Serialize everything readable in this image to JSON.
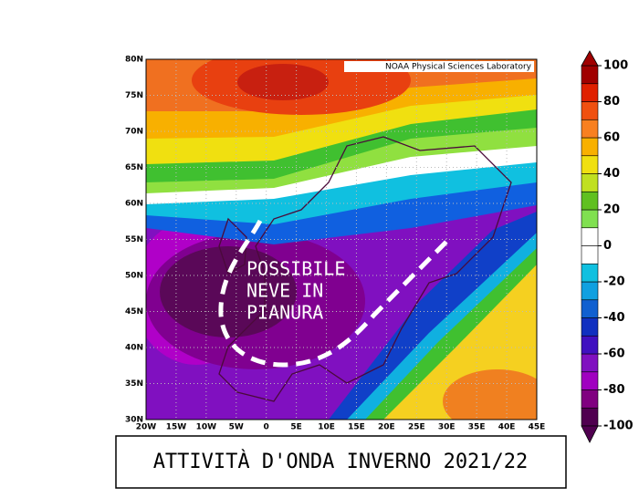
{
  "map": {
    "credit": "NOAA Physical Sciences Laboratory",
    "lon_lim": [
      -20,
      45
    ],
    "lat_lim": [
      30,
      80
    ],
    "lon_ticks": [
      {
        "value": -20,
        "label": "20W"
      },
      {
        "value": -15,
        "label": "15W"
      },
      {
        "value": -10,
        "label": "10W"
      },
      {
        "value": -5,
        "label": "5W"
      },
      0,
      {
        "value": 5,
        "label": "5E"
      },
      {
        "value": 10,
        "label": "10E"
      },
      {
        "value": 15,
        "label": "15E"
      },
      {
        "value": 20,
        "label": "20E"
      },
      {
        "value": 25,
        "label": "25E"
      },
      {
        "value": 30,
        "label": "30E"
      },
      {
        "value": 35,
        "label": "35E"
      },
      {
        "value": 40,
        "label": "40E"
      },
      {
        "value": 45,
        "label": "45E"
      }
    ],
    "lat_ticks": [
      {
        "value": 30,
        "label": "30N"
      },
      {
        "value": 35,
        "label": "35N"
      },
      {
        "value": 40,
        "label": "40N"
      },
      {
        "value": 45,
        "label": "45N"
      },
      {
        "value": 50,
        "label": "50N"
      },
      {
        "value": 55,
        "label": "55N"
      },
      {
        "value": 60,
        "label": "60N"
      },
      {
        "value": 65,
        "label": "65N"
      },
      {
        "value": 70,
        "label": "70N"
      },
      {
        "value": 75,
        "label": "75N"
      },
      {
        "value": 80,
        "label": "80N"
      }
    ]
  },
  "colorbar": {
    "lim": [
      -100,
      100
    ],
    "ticks": [
      -100,
      -80,
      -60,
      -40,
      -20,
      0,
      20,
      40,
      60,
      80,
      100
    ],
    "colors": [
      "#500050",
      "#800080",
      "#a000c0",
      "#8010c0",
      "#4010c0",
      "#1030c0",
      "#1060d0",
      "#10a0e0",
      "#10c0e0",
      "#ffffff",
      "#ffffff",
      "#80e050",
      "#60c020",
      "#c0e020",
      "#f0e010",
      "#f8b000",
      "#f88020",
      "#f05010",
      "#e02000",
      "#a00000"
    ]
  },
  "annotation": {
    "lines": [
      "POSSIBILE",
      "NEVE IN",
      "PIANURA"
    ]
  },
  "caption": "ATTIVITÀ D'ONDA INVERNO 2021/22"
}
